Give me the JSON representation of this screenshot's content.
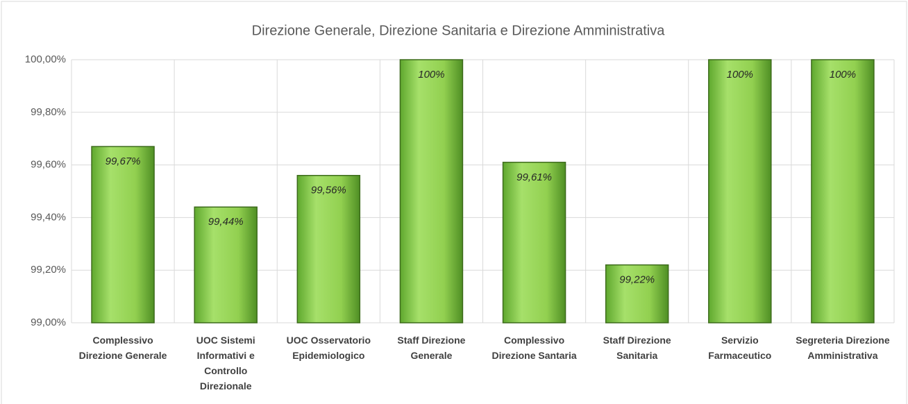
{
  "chart_data": {
    "type": "bar",
    "title": "Direzione Generale, Direzione Sanitaria e Direzione Amministrativa",
    "categories": [
      "Complessivo Direzione Generale",
      "UOC Sistemi Informativi e Controllo Direzionale",
      "UOC Osservatorio Epidemiologico",
      "Staff Direzione Generale",
      "Complessivo Direzione Santaria",
      "Staff Direzione Sanitaria",
      "Servizio Farmaceutico",
      "Segreteria Direzione Amministrativa"
    ],
    "values": [
      99.67,
      99.44,
      99.56,
      100,
      99.61,
      99.22,
      100,
      100
    ],
    "value_labels": [
      "99,67%",
      "99,44%",
      "99,56%",
      "100%",
      "99,61%",
      "99,22%",
      "100%",
      "100%"
    ],
    "color": "#92d050",
    "ylim": [
      99,
      100
    ],
    "yticks": [
      {
        "value": 99,
        "label": "99,00%"
      },
      {
        "value": 99.2,
        "label": "99,20%"
      },
      {
        "value": 99.4,
        "label": "99,40%"
      },
      {
        "value": 99.6,
        "label": "99,60%"
      },
      {
        "value": 99.8,
        "label": "99,80%"
      },
      {
        "value": 100,
        "label": "100,00%"
      }
    ],
    "grid": true
  }
}
